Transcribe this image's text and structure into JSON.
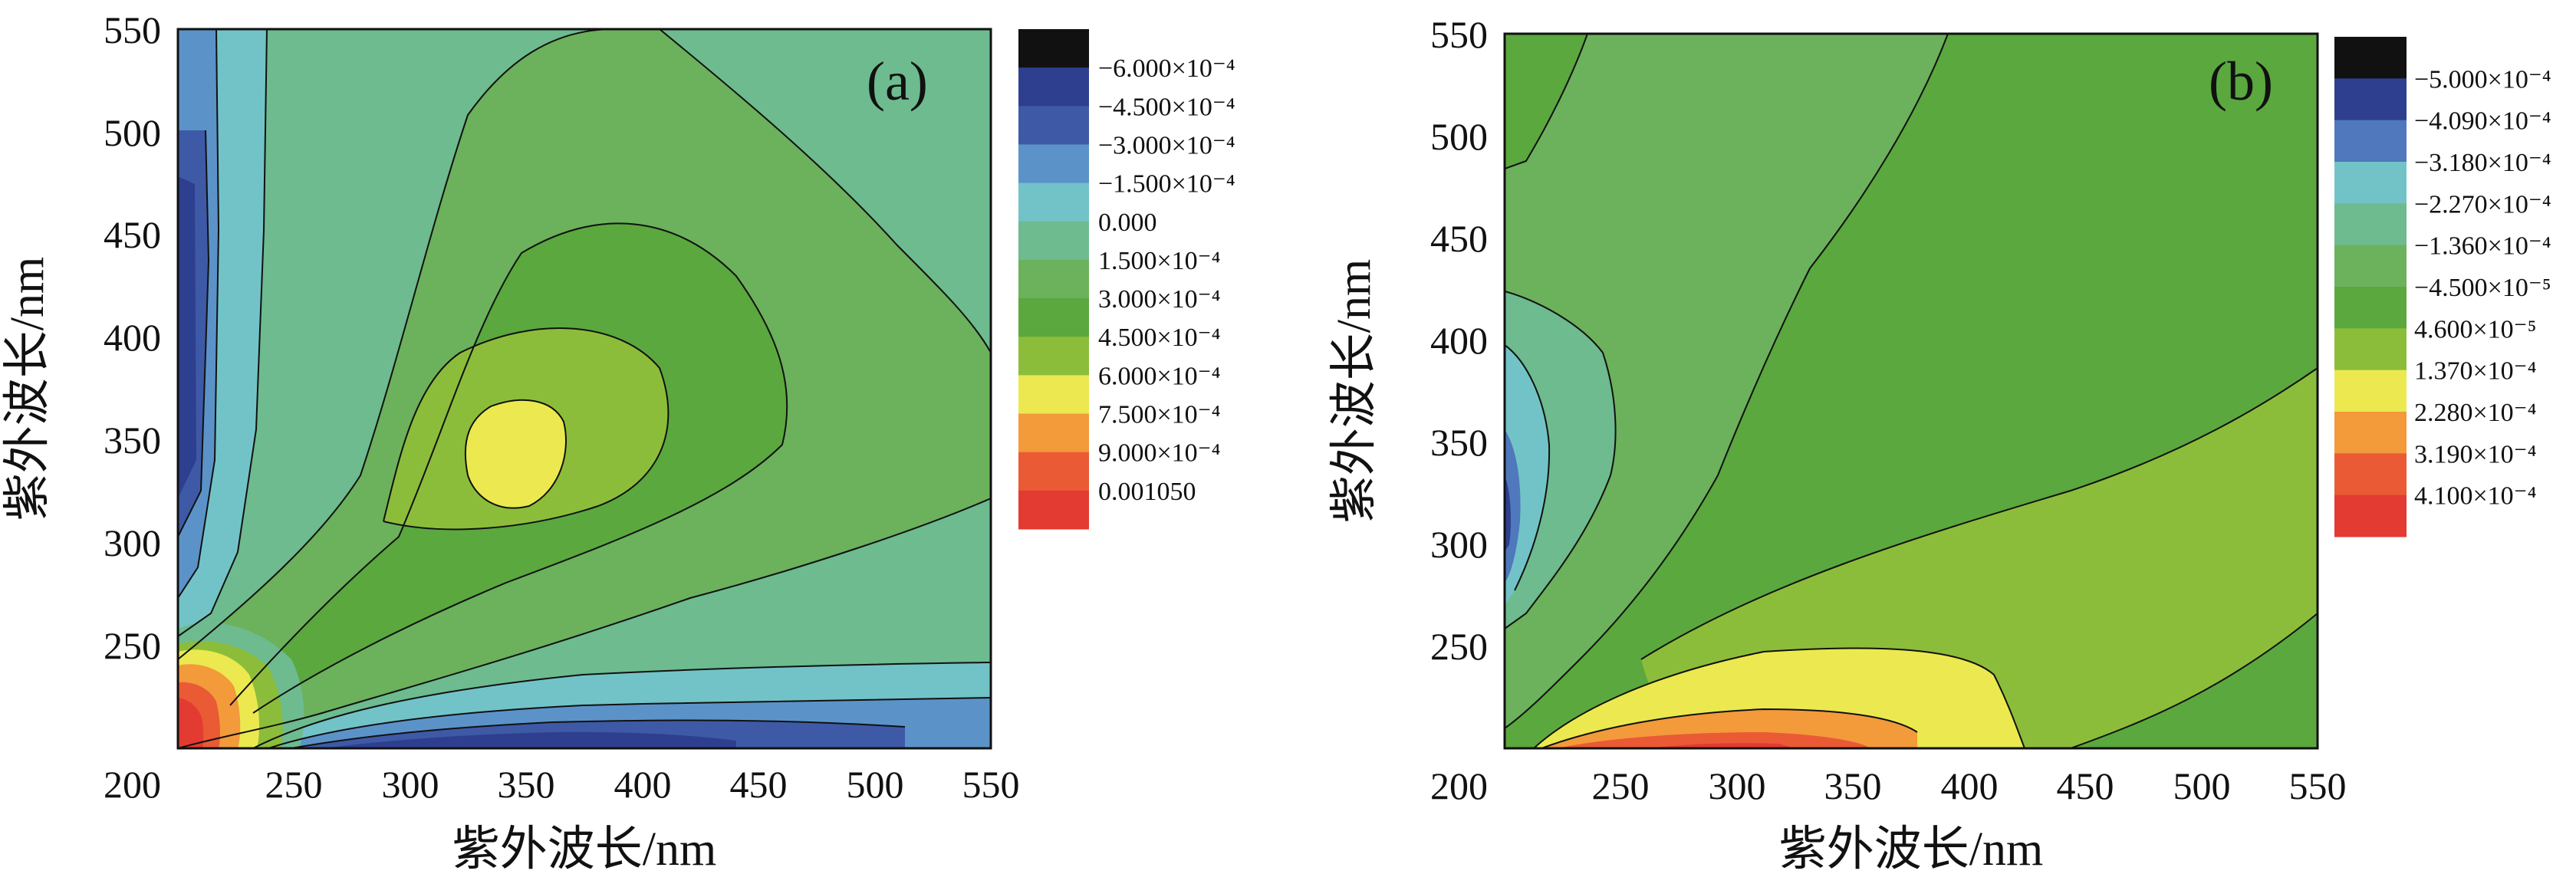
{
  "chart_data": [
    {
      "type": "contour",
      "panel_label": "(a)",
      "xlabel": "紫外波长/nm",
      "ylabel": "紫外波长/nm",
      "xlim": [
        200,
        550
      ],
      "ylim": [
        200,
        550
      ],
      "xticks": [
        "250",
        "300",
        "350",
        "400",
        "450",
        "500",
        "550"
      ],
      "yticks": [
        "550",
        "500",
        "450",
        "400",
        "350",
        "300",
        "250",
        "200"
      ],
      "colorbar": [
        {
          "label": "−6.000×10⁻⁴",
          "color": "#111111"
        },
        {
          "label": "−4.500×10⁻⁴",
          "color": "#2e3f8f"
        },
        {
          "label": "−3.000×10⁻⁴",
          "color": "#3e5aa6"
        },
        {
          "label": "−1.500×10⁻⁴",
          "color": "#5b93c9"
        },
        {
          "label": "0.000",
          "color": "#72c3c7"
        },
        {
          "label": "1.500×10⁻⁴",
          "color": "#6dbb8f"
        },
        {
          "label": "3.000×10⁻⁴",
          "color": "#6cb15c"
        },
        {
          "label": "4.500×10⁻⁴",
          "color": "#5aa83e"
        },
        {
          "label": "6.000×10⁻⁴",
          "color": "#8cbd3a"
        },
        {
          "label": "7.500×10⁻⁴",
          "color": "#ebe94f"
        },
        {
          "label": "9.000×10⁻⁴",
          "color": "#f39a3b"
        },
        {
          "label": "0.001050",
          "color": "#ea5a35"
        },
        {
          "label": "",
          "color": "#e33a32"
        }
      ]
    },
    {
      "type": "contour",
      "panel_label": "(b)",
      "xlabel": "紫外波长/nm",
      "ylabel": "紫外波长/nm",
      "xlim": [
        200,
        550
      ],
      "ylim": [
        200,
        550
      ],
      "xticks": [
        "250",
        "300",
        "350",
        "400",
        "450",
        "500",
        "550"
      ],
      "yticks": [
        "550",
        "500",
        "450",
        "400",
        "350",
        "300",
        "250",
        "200"
      ],
      "colorbar": [
        {
          "label": "−5.000×10⁻⁴",
          "color": "#111111"
        },
        {
          "label": "−4.090×10⁻⁴",
          "color": "#2e3f8f"
        },
        {
          "label": "−3.180×10⁻⁴",
          "color": "#4f78bd"
        },
        {
          "label": "−2.270×10⁻⁴",
          "color": "#72c3c7"
        },
        {
          "label": "−1.360×10⁻⁴",
          "color": "#6dbb8f"
        },
        {
          "label": "−4.500×10⁻⁵",
          "color": "#6cb15c"
        },
        {
          "label": "4.600×10⁻⁵",
          "color": "#5aa83e"
        },
        {
          "label": "1.370×10⁻⁴",
          "color": "#8cbd3a"
        },
        {
          "label": "2.280×10⁻⁴",
          "color": "#ebe94f"
        },
        {
          "label": "3.190×10⁻⁴",
          "color": "#f39a3b"
        },
        {
          "label": "4.100×10⁻⁴",
          "color": "#ea5a35"
        },
        {
          "label": "",
          "color": "#e33a32"
        }
      ]
    }
  ]
}
